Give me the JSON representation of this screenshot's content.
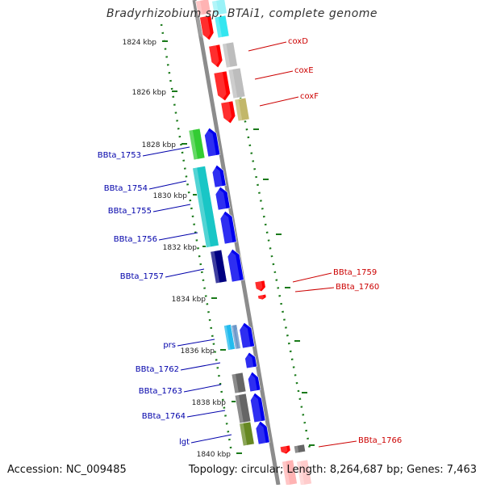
{
  "title": "Bradyrhizobium sp. BTAi1, complete genome",
  "footer": {
    "accession": "Accession: NC_009485",
    "summary": "Topology: circular; Length: 8,264,687 bp; Genes: 7,463"
  },
  "colors": {
    "backbone": "#8c8c8c",
    "tick": "#1a7a1a",
    "forward_label": "#cc0000",
    "reverse_label": "#0000aa"
  },
  "kbp_ticks": [
    {
      "label": "1824 kbp"
    },
    {
      "label": "1826 kbp"
    },
    {
      "label": "1828 kbp"
    },
    {
      "label": "1830 kbp"
    },
    {
      "label": "1832 kbp"
    },
    {
      "label": "1834 kbp"
    },
    {
      "label": "1836 kbp"
    },
    {
      "label": "1838 kbp"
    },
    {
      "label": "1840 kbp"
    }
  ],
  "forward_labels": [
    {
      "text": "coxD"
    },
    {
      "text": "coxE"
    },
    {
      "text": "coxF"
    },
    {
      "text": "BBta_1759"
    },
    {
      "text": "BBta_1760"
    },
    {
      "text": "BBta_1766"
    }
  ],
  "reverse_labels": [
    {
      "text": "BBta_1753"
    },
    {
      "text": "BBta_1754"
    },
    {
      "text": "BBta_1755"
    },
    {
      "text": "BBta_1756"
    },
    {
      "text": "BBta_1757"
    },
    {
      "text": "prs"
    },
    {
      "text": "BBta_1762"
    },
    {
      "text": "BBta_1763"
    },
    {
      "text": "BBta_1764"
    },
    {
      "text": "lgt"
    }
  ]
}
